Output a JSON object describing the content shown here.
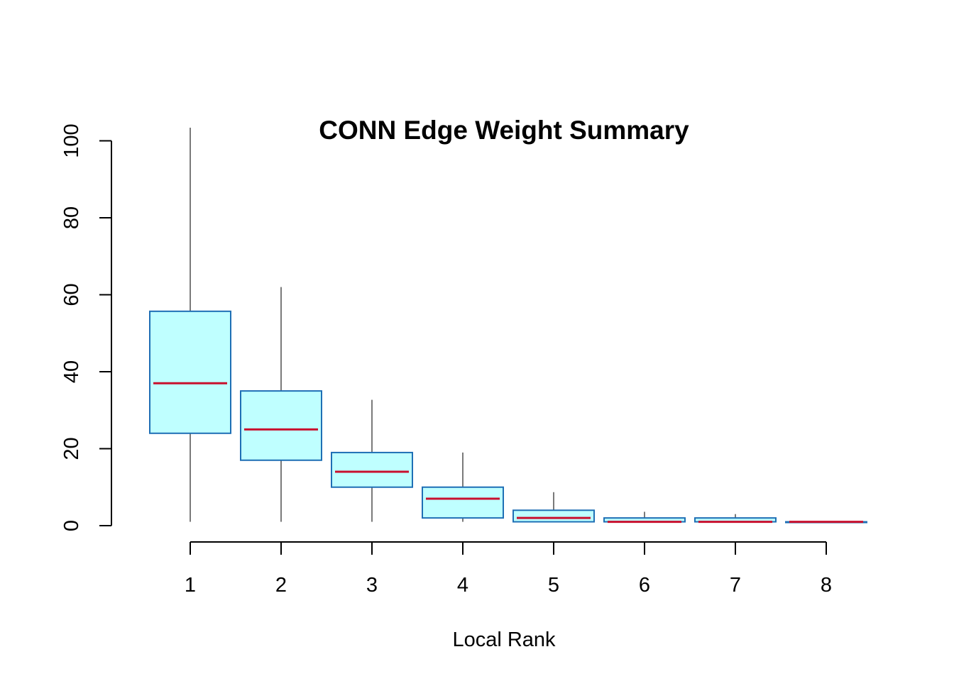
{
  "chart_data": {
    "type": "boxplot",
    "title": "CONN Edge Weight Summary",
    "xlabel": "Local Rank",
    "ylabel": "",
    "categories": [
      "1",
      "2",
      "3",
      "4",
      "5",
      "6",
      "7",
      "8"
    ],
    "yticks": [
      "0",
      "20",
      "40",
      "60",
      "80",
      "100"
    ],
    "ylim": [
      0,
      100
    ],
    "grid": false,
    "boxes": [
      {
        "min": 1,
        "q1": 24,
        "median": 37,
        "q3": 55.7,
        "max": 103.4
      },
      {
        "min": 1,
        "q1": 17,
        "median": 25,
        "q3": 35,
        "max": 62
      },
      {
        "min": 1,
        "q1": 10,
        "median": 14,
        "q3": 19,
        "max": 32.7
      },
      {
        "min": 1,
        "q1": 2,
        "median": 7,
        "q3": 10,
        "max": 19
      },
      {
        "min": 1,
        "q1": 1,
        "median": 2,
        "q3": 4,
        "max": 8.7
      },
      {
        "min": 1,
        "q1": 1,
        "median": 1,
        "q3": 2,
        "max": 3.6
      },
      {
        "min": 1,
        "q1": 1,
        "median": 1,
        "q3": 2,
        "max": 3
      },
      {
        "min": 1,
        "q1": 1,
        "median": 1,
        "q3": 1,
        "max": 1
      }
    ],
    "colors": {
      "box_fill": "#BFFFFF",
      "box_border": "#1E6FB5",
      "median": "#C8102E",
      "whisker": "#7A7A7A",
      "axis": "#000000"
    }
  }
}
